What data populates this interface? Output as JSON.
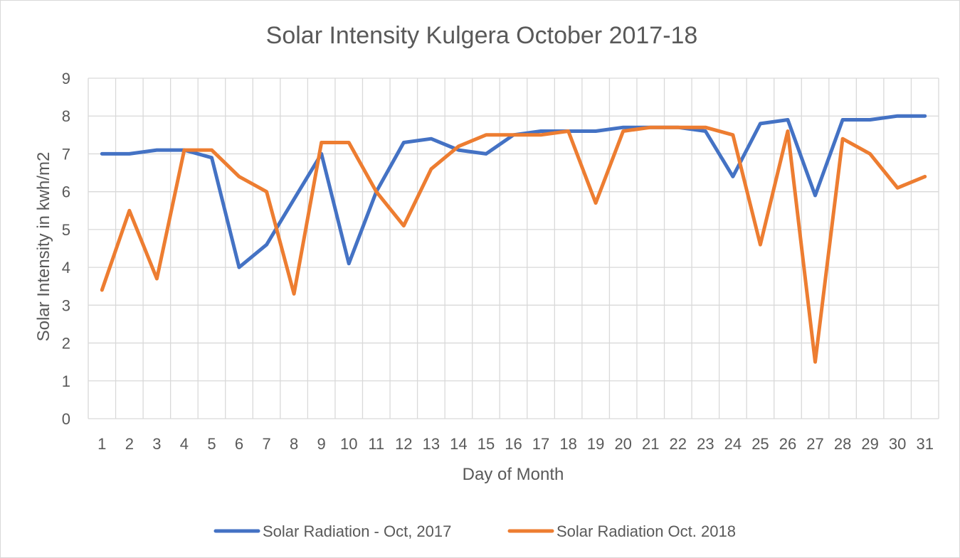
{
  "chart_data": {
    "type": "line",
    "title": "Solar Intensity Kulgera October 2017-18",
    "xlabel": "Day of Month",
    "ylabel": "Solar Intensity in kwh/m2",
    "ylim": [
      0,
      9
    ],
    "yticks": [
      0,
      1,
      2,
      3,
      4,
      5,
      6,
      7,
      8,
      9
    ],
    "grid": true,
    "legend_position": "bottom",
    "categories": [
      "1",
      "2",
      "3",
      "4",
      "5",
      "6",
      "7",
      "8",
      "9",
      "10",
      "11",
      "12",
      "13",
      "14",
      "15",
      "16",
      "17",
      "18",
      "19",
      "20",
      "21",
      "22",
      "23",
      "24",
      "25",
      "26",
      "27",
      "28",
      "29",
      "30",
      "31"
    ],
    "series": [
      {
        "name": "Solar Radiation - Oct, 2017",
        "color": "#4472c4",
        "values": [
          7.0,
          7.0,
          7.1,
          7.1,
          6.9,
          4.0,
          4.6,
          5.8,
          7.0,
          4.1,
          6.0,
          7.3,
          7.4,
          7.1,
          7.0,
          7.5,
          7.6,
          7.6,
          7.6,
          7.7,
          7.7,
          7.7,
          7.6,
          6.4,
          7.8,
          7.9,
          5.9,
          7.9,
          7.9,
          8.0,
          8.0
        ]
      },
      {
        "name": "Solar Radiation Oct. 2018",
        "color": "#ed7d31",
        "values": [
          3.4,
          5.5,
          3.7,
          7.1,
          7.1,
          6.4,
          6.0,
          3.3,
          7.3,
          7.3,
          6.0,
          5.1,
          6.6,
          7.2,
          7.5,
          7.5,
          7.5,
          7.6,
          5.7,
          7.6,
          7.7,
          7.7,
          7.7,
          7.5,
          4.6,
          7.6,
          1.5,
          7.4,
          7.0,
          6.1,
          6.4
        ]
      }
    ]
  }
}
